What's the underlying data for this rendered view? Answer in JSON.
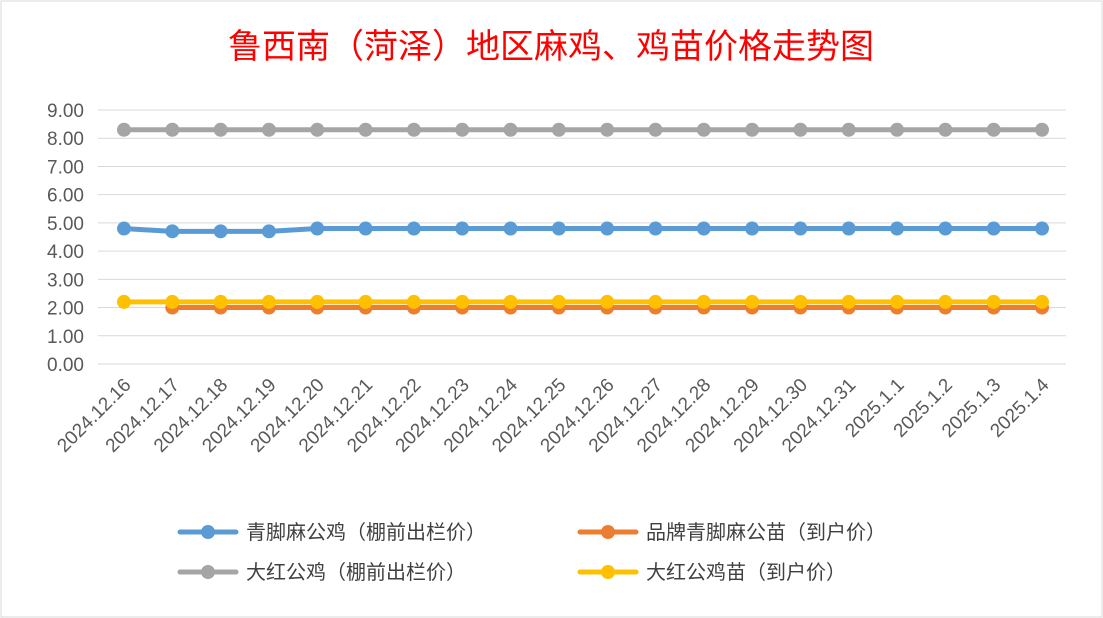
{
  "chart_data": {
    "type": "line",
    "title": "鲁西南（菏泽）地区麻鸡、鸡苗价格走势图",
    "xlabel": "",
    "ylabel": "",
    "ylim": [
      0,
      9
    ],
    "yticks": [
      "9.00",
      "8.00",
      "7.00",
      "6.00",
      "5.00",
      "4.00",
      "3.00",
      "2.00",
      "1.00",
      "0.00"
    ],
    "grid": true,
    "legend_position": "bottom",
    "categories": [
      "2024.12.16",
      "2024.12.17",
      "2024.12.18",
      "2024.12.19",
      "2024.12.20",
      "2024.12.21",
      "2024.12.22",
      "2024.12.23",
      "2024.12.24",
      "2024.12.25",
      "2024.12.26",
      "2024.12.27",
      "2024.12.28",
      "2024.12.29",
      "2024.12.30",
      "2024.12.31",
      "2025.1.1",
      "2025.1.2",
      "2025.1.3",
      "2025.1.4"
    ],
    "series": [
      {
        "name": "大红公鸡（棚前出栏价）",
        "color": "#a5a5a5",
        "values": [
          8.3,
          8.3,
          8.3,
          8.3,
          8.3,
          8.3,
          8.3,
          8.3,
          8.3,
          8.3,
          8.3,
          8.3,
          8.3,
          8.3,
          8.3,
          8.3,
          8.3,
          8.3,
          8.3,
          8.3
        ]
      },
      {
        "name": "青脚麻公鸡（棚前出栏价）",
        "color": "#5b9bd5",
        "values": [
          4.8,
          4.7,
          4.7,
          4.7,
          4.8,
          4.8,
          4.8,
          4.8,
          4.8,
          4.8,
          4.8,
          4.8,
          4.8,
          4.8,
          4.8,
          4.8,
          4.8,
          4.8,
          4.8,
          4.8
        ]
      },
      {
        "name": "品牌青脚麻公苗（到户价）",
        "color": "#ed7d31",
        "values": [
          null,
          2.0,
          2.0,
          2.0,
          2.0,
          2.0,
          2.0,
          2.0,
          2.0,
          2.0,
          2.0,
          2.0,
          2.0,
          2.0,
          2.0,
          2.0,
          2.0,
          2.0,
          2.0,
          2.0
        ]
      },
      {
        "name": "大红公鸡苗（到户价）",
        "color": "#ffc000",
        "values": [
          2.2,
          2.2,
          2.2,
          2.2,
          2.2,
          2.2,
          2.2,
          2.2,
          2.2,
          2.2,
          2.2,
          2.2,
          2.2,
          2.2,
          2.2,
          2.2,
          2.2,
          2.2,
          2.2,
          2.2
        ]
      }
    ],
    "legend_order": [
      1,
      2,
      0,
      3
    ]
  }
}
